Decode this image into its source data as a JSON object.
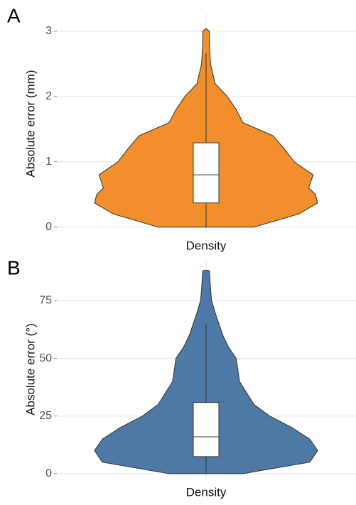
{
  "chart_data": [
    {
      "type": "violin",
      "panel_label": "A",
      "y_label": "Absolute error (mm)",
      "categories": [
        "Density"
      ],
      "color": "#f28e2b",
      "ylim": [
        -0.09,
        3.26
      ],
      "yticks": [
        0,
        1,
        2,
        3
      ],
      "grid": true,
      "violin": {
        "y": [
          0,
          0.2,
          0.37,
          0.5,
          0.6,
          0.8,
          1.0,
          1.2,
          1.4,
          1.6,
          1.8,
          2.0,
          2.2,
          2.5,
          2.8,
          3.0,
          3.04
        ],
        "width": [
          0.43,
          0.83,
          1.0,
          0.98,
          0.92,
          0.96,
          0.79,
          0.7,
          0.6,
          0.33,
          0.27,
          0.19,
          0.08,
          0.04,
          0.03,
          0.03,
          0
        ]
      },
      "box": {
        "min": 0,
        "q1": 0.37,
        "median": 0.8,
        "q3": 1.29,
        "max": 2.66
      }
    },
    {
      "type": "violin",
      "panel_label": "B",
      "y_label": "Absolute error (°)",
      "categories": [
        "Density"
      ],
      "color": "#4e79a7",
      "ylim": [
        -2.5,
        93
      ],
      "yticks": [
        0,
        25,
        50,
        75
      ],
      "grid": true,
      "violin": {
        "y": [
          0,
          5,
          10,
          15,
          20,
          25,
          30,
          40,
          50,
          55,
          60,
          70,
          75,
          80,
          88,
          88.3
        ],
        "width": [
          0.33,
          0.93,
          1.0,
          0.93,
          0.77,
          0.57,
          0.43,
          0.3,
          0.27,
          0.2,
          0.15,
          0.08,
          0.05,
          0.04,
          0.03,
          0
        ]
      },
      "box": {
        "min": 0,
        "q1": 7.4,
        "median": 16,
        "q3": 30.9,
        "max": 65
      }
    }
  ]
}
